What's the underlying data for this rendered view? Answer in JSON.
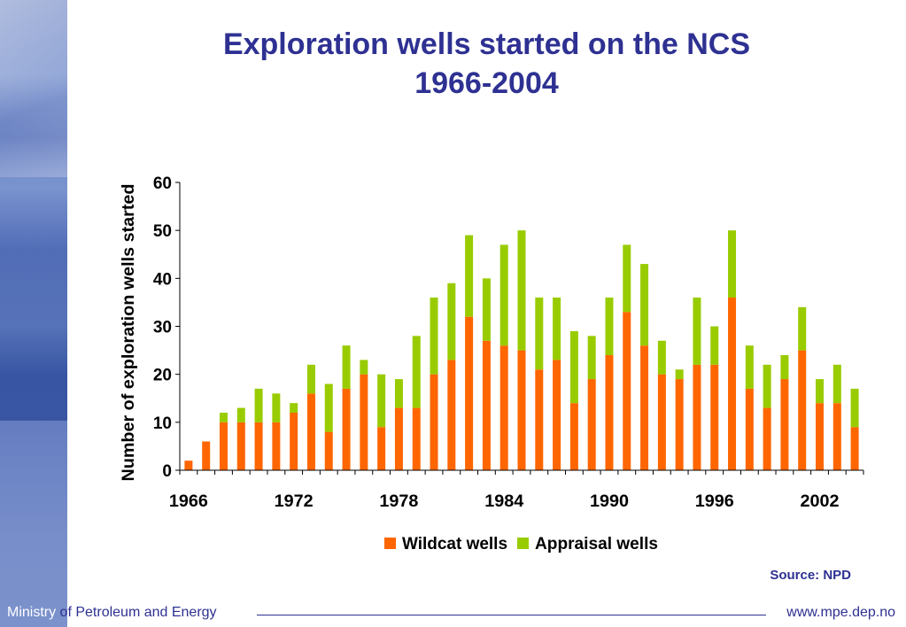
{
  "title": {
    "line1": "Exploration wells started on the NCS",
    "line2": "1966-2004"
  },
  "source": "Source: NPD",
  "footer": {
    "ministry_part1": "Ministry",
    "ministry_part2": " of Petroleum and Energy",
    "url": "www.mpe.dep.no"
  },
  "colors": {
    "title": "#2e3192",
    "wildcat": "#ff6600",
    "appraisal": "#99cc00"
  },
  "chart_data": {
    "type": "bar",
    "stacked": true,
    "title": "Exploration wells started on the NCS 1966-2004",
    "ylabel": "Number of exploration wells started",
    "xlabel": "",
    "ylim": [
      0,
      60
    ],
    "yticks": [
      0,
      10,
      20,
      30,
      40,
      50,
      60
    ],
    "xtick_labels": [
      "1966",
      "1972",
      "1978",
      "1984",
      "1990",
      "1996",
      "2002"
    ],
    "legend_position": "bottom-center",
    "categories": [
      1966,
      1967,
      1968,
      1969,
      1970,
      1971,
      1972,
      1973,
      1974,
      1975,
      1976,
      1977,
      1978,
      1979,
      1980,
      1981,
      1982,
      1983,
      1984,
      1985,
      1986,
      1987,
      1988,
      1989,
      1990,
      1991,
      1992,
      1993,
      1994,
      1995,
      1996,
      1997,
      1998,
      1999,
      2000,
      2001,
      2002,
      2003,
      2004
    ],
    "series": [
      {
        "name": "Wildcat wells",
        "color": "#ff6600",
        "values": [
          2,
          6,
          10,
          10,
          10,
          10,
          12,
          16,
          8,
          17,
          20,
          9,
          13,
          13,
          20,
          23,
          32,
          27,
          26,
          25,
          21,
          23,
          14,
          19,
          24,
          33,
          26,
          20,
          19,
          22,
          22,
          36,
          17,
          13,
          19,
          25,
          14,
          14,
          9
        ]
      },
      {
        "name": "Appraisal wells",
        "color": "#99cc00",
        "values": [
          0,
          0,
          2,
          3,
          7,
          6,
          2,
          6,
          10,
          9,
          3,
          11,
          6,
          15,
          16,
          16,
          17,
          13,
          21,
          25,
          15,
          13,
          15,
          9,
          12,
          14,
          17,
          7,
          2,
          14,
          8,
          14,
          9,
          9,
          5,
          9,
          5,
          8,
          8
        ]
      }
    ]
  }
}
